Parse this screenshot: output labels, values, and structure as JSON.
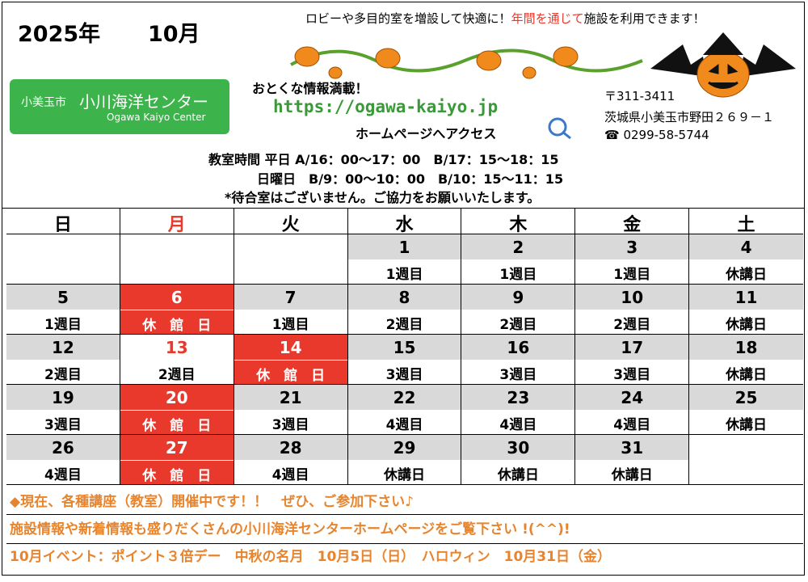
{
  "header": {
    "year": "2025年",
    "month": "10月",
    "tagline": [
      "ロビーや多目的室を増設して快適に！",
      "年間を通じて",
      "施設を利用できます！"
    ],
    "tagline_accent": "#e8392c",
    "logo": {
      "city": "小美玉市",
      "name": "小川海洋センター",
      "roman": "Ogawa Kaiyo Center"
    },
    "promo": {
      "lead": "おとくな情報満載！",
      "url": "https://ogawa-kaiyo.jp",
      "action": "ホームページへアクセス"
    },
    "address": {
      "postal": "〒311-3411",
      "street": "茨城県小美玉市野田２６９－１",
      "phone": "0299-58-5744"
    },
    "hours": [
      "教室時間 平日 A/16：00～17：00　B/17：15～18：15",
      "日曜日　B/9：00～10：00　B/10：15～11：15",
      "*待合室はございません。ご協力をお願いいたします。"
    ]
  },
  "calendar": {
    "weekdays": [
      {
        "label": "日"
      },
      {
        "label": "月",
        "color": "#e8392c"
      },
      {
        "label": "火"
      },
      {
        "label": "水"
      },
      {
        "label": "木"
      },
      {
        "label": "金"
      },
      {
        "label": "土"
      }
    ],
    "weeks": [
      [
        null,
        null,
        null,
        {
          "day": 1,
          "label": "1週目"
        },
        {
          "day": 2,
          "label": "1週目"
        },
        {
          "day": 3,
          "label": "1週目"
        },
        {
          "day": 4,
          "label": "休講日"
        }
      ],
      [
        {
          "day": 5,
          "label": "1週目"
        },
        {
          "day": 6,
          "label": "休　館　日",
          "fill": "#e8392c"
        },
        {
          "day": 7,
          "label": "1週目"
        },
        {
          "day": 8,
          "label": "2週目"
        },
        {
          "day": 9,
          "label": "2週目"
        },
        {
          "day": 10,
          "label": "2週目"
        },
        {
          "day": 11,
          "label": "休講日"
        }
      ],
      [
        {
          "day": 12,
          "label": "2週目"
        },
        {
          "day": 13,
          "label": "2週目",
          "day_color": "#e8392c"
        },
        {
          "day": 14,
          "label": "休　館　日",
          "fill": "#e8392c"
        },
        {
          "day": 15,
          "label": "3週目"
        },
        {
          "day": 16,
          "label": "3週目"
        },
        {
          "day": 17,
          "label": "3週目"
        },
        {
          "day": 18,
          "label": "休講日"
        }
      ],
      [
        {
          "day": 19,
          "label": "3週目"
        },
        {
          "day": 20,
          "label": "休　館　日",
          "fill": "#e8392c"
        },
        {
          "day": 21,
          "label": "3週目"
        },
        {
          "day": 22,
          "label": "4週目"
        },
        {
          "day": 23,
          "label": "4週目"
        },
        {
          "day": 24,
          "label": "4週目"
        },
        {
          "day": 25,
          "label": "休講日"
        }
      ],
      [
        {
          "day": 26,
          "label": "4週目"
        },
        {
          "day": 27,
          "label": "休　館　日",
          "fill": "#e8392c"
        },
        {
          "day": 28,
          "label": "4週目"
        },
        {
          "day": 29,
          "label": "休講日"
        },
        {
          "day": 30,
          "label": "休講日"
        },
        {
          "day": 31,
          "label": "休講日"
        },
        null
      ]
    ]
  },
  "footer": [
    "◆現在、各種講座（教室）開催中です！！　ぜひ、ご参加下さい♪",
    "施設情報や新着情報も盛りだくさんの小川海洋センターホームページをご覧下さい !(^^)!",
    "10月イベント：ポイント３倍デー　中秋の名月　10月5日（日）　ハロウィン　10月31日（金）"
  ]
}
